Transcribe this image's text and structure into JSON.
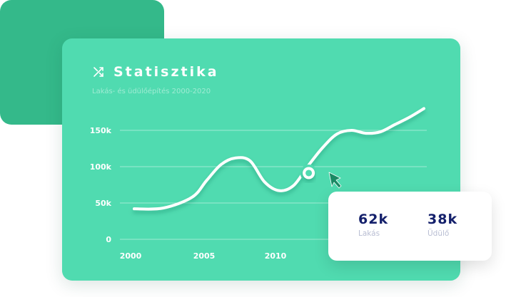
{
  "header": {
    "title": "Statisztika",
    "subtitle": "Lakás- és üdülőépítés 2000-2020",
    "icon": "shuffle-icon"
  },
  "colors": {
    "card_back": "#34b98a",
    "card_main": "#50dbb0",
    "line": "#ffffff",
    "cursor": "#1a8a64",
    "stat_value": "#14206b"
  },
  "stats": [
    {
      "value": "62k",
      "label": "Lakás"
    },
    {
      "value": "38k",
      "label": "Üdülő"
    }
  ],
  "chart_data": {
    "type": "line",
    "title": "Statisztika",
    "subtitle": "Lakás- és üdülőépítés 2000-2020",
    "xlabel": "",
    "ylabel": "",
    "x_ticks": [
      "2000",
      "2005",
      "2010"
    ],
    "y_ticks": [
      "0",
      "50k",
      "100k",
      "150k"
    ],
    "ylim": [
      0,
      150000
    ],
    "xlim": [
      2000,
      2020
    ],
    "grid": true,
    "series": [
      {
        "x": [
          2000,
          2002,
          2004,
          2005,
          2006,
          2007,
          2008,
          2009,
          2010,
          2011,
          2012,
          2013,
          2014,
          2015,
          2016,
          2017,
          2018,
          2019,
          2020
        ],
        "values": [
          42000,
          43000,
          58000,
          81000,
          103000,
          112000,
          108000,
          79000,
          67000,
          74000,
          101000,
          126000,
          145000,
          150000,
          146000,
          148000,
          158000,
          168000,
          180000
        ]
      }
    ],
    "highlight_point": {
      "x": 2012,
      "y": 101000
    }
  }
}
